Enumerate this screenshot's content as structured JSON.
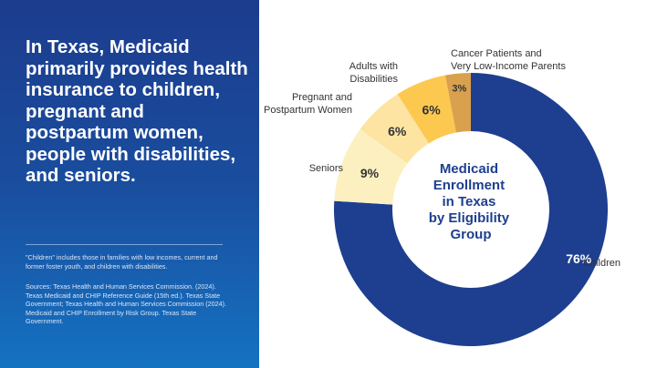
{
  "headline": "In Texas, Medicaid primarily provides health insurance to children, pregnant and postpartum women, people with disabilities, and seniors.",
  "footnote": "\"Children\" includes those in families with low incomes, current and former foster youth, and children with disabilities.",
  "sources": "Sources: Texas Health and Human Services Commission. (2024). Texas Medicaid and CHIP Reference Guide (15th ed.). Texas State Government; Texas Health and Human Services Commission (2024). Medicaid and CHIP Enrollment by Risk Group. Texas State Government.",
  "chart_data": {
    "type": "pie",
    "donut": true,
    "title_lines": [
      "Medicaid",
      "Enrollment",
      "in Texas",
      "by Eligibility",
      "Group"
    ],
    "slices": [
      {
        "label": "Children",
        "value": 76,
        "display": "76%",
        "color": "#1e3f8f"
      },
      {
        "label": "Seniors",
        "value": 9,
        "display": "9%",
        "color": "#fdf0c0"
      },
      {
        "label": "Pregnant and Postpartum Women",
        "value": 6,
        "display": "6%",
        "color": "#fde4a2"
      },
      {
        "label": "Adults with Disabilities",
        "value": 6,
        "display": "6%",
        "color": "#fcc84f"
      },
      {
        "label": "Cancer Patients and Very Low-Income Parents",
        "value": 3,
        "display": "3%",
        "color": "#d9a14e"
      }
    ]
  }
}
